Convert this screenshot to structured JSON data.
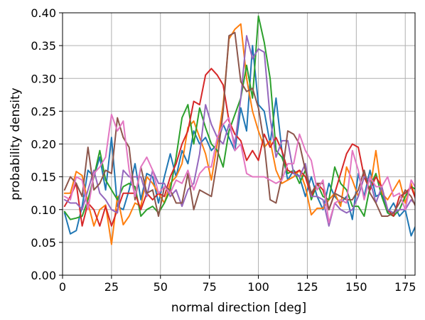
{
  "chart_data": {
    "type": "line",
    "title": "",
    "xlabel": "normal direction [deg]",
    "ylabel": "probability density",
    "xlim": [
      0,
      180
    ],
    "ylim": [
      0,
      0.4
    ],
    "xticks": [
      0,
      25,
      50,
      75,
      100,
      125,
      150,
      175
    ],
    "yticks": [
      0.0,
      0.05,
      0.1,
      0.15,
      0.2,
      0.25,
      0.3,
      0.35,
      0.4
    ],
    "ytick_labels": [
      "0.00",
      "0.05",
      "0.10",
      "0.15",
      "0.20",
      "0.25",
      "0.30",
      "0.35",
      "0.40"
    ],
    "xtick_labels": [
      "0",
      "25",
      "50",
      "75",
      "100",
      "125",
      "150",
      "175"
    ],
    "grid": true,
    "x": [
      1,
      4,
      7,
      10,
      13,
      16,
      19,
      22,
      25,
      28,
      31,
      34,
      37,
      40,
      43,
      46,
      49,
      52,
      55,
      58,
      61,
      64,
      67,
      70,
      73,
      76,
      79,
      82,
      85,
      88,
      91,
      94,
      97,
      100,
      103,
      106,
      109,
      112,
      115,
      118,
      121,
      124,
      127,
      130,
      133,
      136,
      139,
      142,
      145,
      148,
      151,
      154,
      157,
      160,
      163,
      166,
      169,
      172,
      175,
      178,
      181
    ],
    "series": [
      {
        "color": "#1f77b4",
        "values": [
          0.095,
          0.063,
          0.068,
          0.105,
          0.16,
          0.15,
          0.18,
          0.13,
          0.21,
          0.105,
          0.1,
          0.13,
          0.17,
          0.115,
          0.155,
          0.15,
          0.11,
          0.15,
          0.185,
          0.15,
          0.19,
          0.17,
          0.22,
          0.2,
          0.21,
          0.19,
          0.2,
          0.23,
          0.21,
          0.19,
          0.255,
          0.22,
          0.35,
          0.26,
          0.25,
          0.2,
          0.27,
          0.19,
          0.145,
          0.16,
          0.15,
          0.12,
          0.15,
          0.12,
          0.1,
          0.14,
          0.12,
          0.11,
          0.12,
          0.085,
          0.155,
          0.12,
          0.16,
          0.12,
          0.125,
          0.095,
          0.11,
          0.09,
          0.1,
          0.06,
          0.08
        ]
      },
      {
        "color": "#ff7f0e",
        "values": [
          0.125,
          0.125,
          0.158,
          0.152,
          0.11,
          0.075,
          0.1,
          0.107,
          0.047,
          0.12,
          0.077,
          0.09,
          0.11,
          0.105,
          0.15,
          0.14,
          0.125,
          0.11,
          0.14,
          0.15,
          0.17,
          0.225,
          0.235,
          0.21,
          0.185,
          0.145,
          0.2,
          0.26,
          0.36,
          0.375,
          0.383,
          0.3,
          0.25,
          0.22,
          0.195,
          0.205,
          0.16,
          0.14,
          0.145,
          0.15,
          0.16,
          0.135,
          0.092,
          0.102,
          0.102,
          0.115,
          0.125,
          0.105,
          0.165,
          0.145,
          0.12,
          0.15,
          0.13,
          0.19,
          0.125,
          0.115,
          0.13,
          0.145,
          0.11,
          0.14,
          0.11
        ]
      },
      {
        "color": "#2ca02c",
        "values": [
          0.097,
          0.085,
          0.087,
          0.09,
          0.115,
          0.15,
          0.19,
          0.145,
          0.13,
          0.115,
          0.135,
          0.14,
          0.135,
          0.09,
          0.1,
          0.105,
          0.095,
          0.11,
          0.13,
          0.18,
          0.24,
          0.26,
          0.2,
          0.255,
          0.225,
          0.2,
          0.19,
          0.165,
          0.22,
          0.245,
          0.27,
          0.32,
          0.27,
          0.395,
          0.355,
          0.3,
          0.19,
          0.18,
          0.155,
          0.16,
          0.14,
          0.16,
          0.115,
          0.14,
          0.12,
          0.115,
          0.165,
          0.14,
          0.13,
          0.105,
          0.105,
          0.09,
          0.135,
          0.155,
          0.12,
          0.095,
          0.09,
          0.1,
          0.12,
          0.135,
          0.13
        ]
      },
      {
        "color": "#d62728",
        "values": [
          0.105,
          0.12,
          0.14,
          0.075,
          0.11,
          0.1,
          0.075,
          0.105,
          0.075,
          0.1,
          0.125,
          0.125,
          0.125,
          0.1,
          0.125,
          0.115,
          0.125,
          0.12,
          0.15,
          0.17,
          0.2,
          0.22,
          0.265,
          0.26,
          0.305,
          0.315,
          0.305,
          0.29,
          0.235,
          0.215,
          0.205,
          0.175,
          0.19,
          0.175,
          0.215,
          0.195,
          0.21,
          0.19,
          0.16,
          0.155,
          0.16,
          0.15,
          0.12,
          0.14,
          0.13,
          0.1,
          0.125,
          0.155,
          0.185,
          0.2,
          0.195,
          0.15,
          0.13,
          0.15,
          0.135,
          0.1,
          0.09,
          0.12,
          0.125,
          0.135,
          0.11
        ]
      },
      {
        "color": "#9467bd",
        "values": [
          0.115,
          0.11,
          0.11,
          0.1,
          0.13,
          0.16,
          0.125,
          0.115,
          0.1,
          0.095,
          0.16,
          0.15,
          0.15,
          0.15,
          0.12,
          0.16,
          0.14,
          0.14,
          0.12,
          0.13,
          0.105,
          0.13,
          0.14,
          0.185,
          0.26,
          0.23,
          0.21,
          0.2,
          0.23,
          0.2,
          0.27,
          0.365,
          0.33,
          0.345,
          0.34,
          0.24,
          0.18,
          0.205,
          0.205,
          0.155,
          0.15,
          0.17,
          0.12,
          0.12,
          0.115,
          0.075,
          0.11,
          0.1,
          0.095,
          0.1,
          0.12,
          0.15,
          0.145,
          0.11,
          0.135,
          0.1,
          0.095,
          0.1,
          0.1,
          0.115,
          0.105
        ]
      },
      {
        "color": "#8c564b",
        "values": [
          0.13,
          0.15,
          0.14,
          0.12,
          0.195,
          0.13,
          0.14,
          0.16,
          0.155,
          0.24,
          0.21,
          0.195,
          0.115,
          0.165,
          0.125,
          0.13,
          0.09,
          0.135,
          0.13,
          0.11,
          0.11,
          0.155,
          0.1,
          0.13,
          0.125,
          0.12,
          0.175,
          0.25,
          0.365,
          0.37,
          0.295,
          0.28,
          0.285,
          0.255,
          0.2,
          0.115,
          0.11,
          0.15,
          0.22,
          0.215,
          0.2,
          0.16,
          0.125,
          0.14,
          0.14,
          0.1,
          0.125,
          0.12,
          0.115,
          0.115,
          0.13,
          0.16,
          0.125,
          0.11,
          0.09,
          0.09,
          0.095,
          0.11,
          0.13,
          0.12,
          0.1
        ]
      },
      {
        "color": "#e377c2",
        "values": [
          0.12,
          0.115,
          0.15,
          0.145,
          0.1,
          0.155,
          0.165,
          0.18,
          0.245,
          0.22,
          0.235,
          0.16,
          0.12,
          0.165,
          0.18,
          0.16,
          0.125,
          0.135,
          0.125,
          0.145,
          0.14,
          0.16,
          0.13,
          0.155,
          0.165,
          0.165,
          0.21,
          0.23,
          0.24,
          0.19,
          0.2,
          0.155,
          0.15,
          0.15,
          0.15,
          0.145,
          0.14,
          0.145,
          0.17,
          0.17,
          0.215,
          0.19,
          0.175,
          0.13,
          0.145,
          0.08,
          0.11,
          0.115,
          0.11,
          0.19,
          0.16,
          0.115,
          0.15,
          0.135,
          0.135,
          0.15,
          0.12,
          0.125,
          0.1,
          0.145,
          0.13
        ]
      }
    ]
  }
}
